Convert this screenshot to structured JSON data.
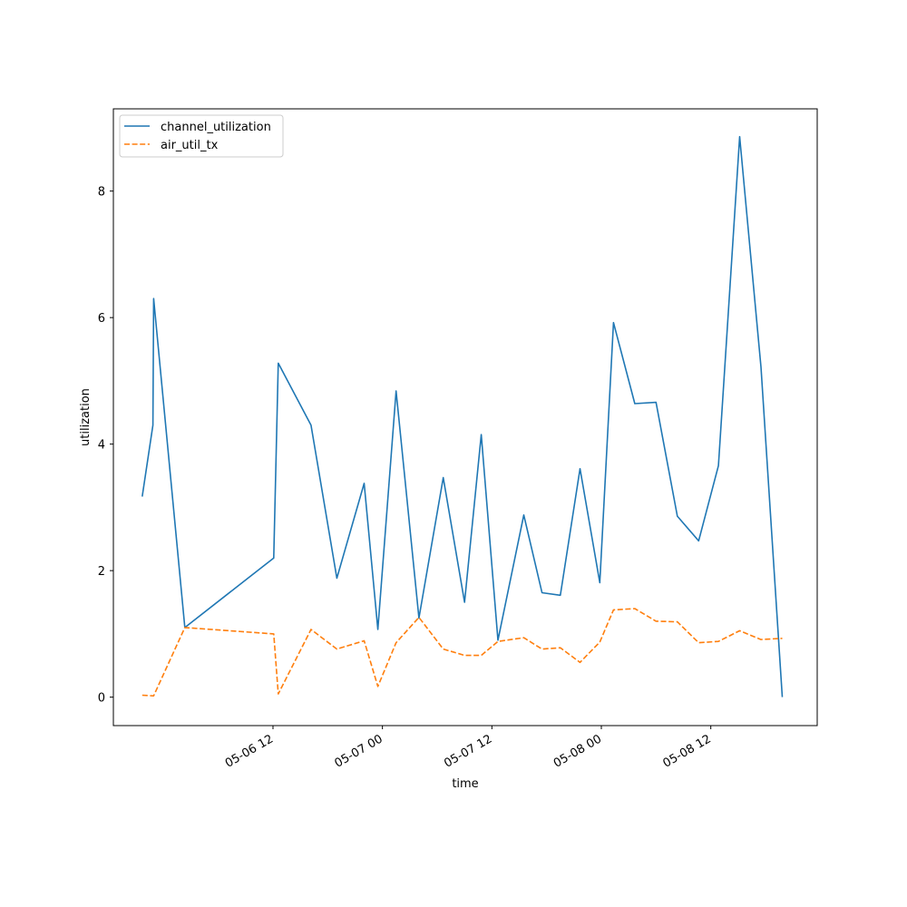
{
  "chart_data": {
    "type": "line",
    "title": "",
    "xlabel": "time",
    "ylabel": "utilization",
    "x_tick_labels": [
      "05-06 12",
      "05-07 00",
      "05-07 12",
      "05-08 00",
      "05-08 12"
    ],
    "x_tick_values": [
      "2024-05-06T12:00",
      "2024-05-07T00:00",
      "2024-05-07T12:00",
      "2024-05-08T00:00",
      "2024-05-08T12:00"
    ],
    "y_ticks": [
      0,
      2,
      4,
      6,
      8
    ],
    "xlim": [
      "2024-05-05T18:30",
      "2024-05-08T23:40"
    ],
    "ylim": [
      -0.45,
      9.3
    ],
    "grid": false,
    "legend_position": "upper-left",
    "x": [
      "2024-05-05T21:40",
      "2024-05-05T22:50",
      "2024-05-05T22:55",
      "2024-05-06T02:20",
      "2024-05-06T12:05",
      "2024-05-06T12:35",
      "2024-05-06T16:10",
      "2024-05-06T19:00",
      "2024-05-06T22:00",
      "2024-05-06T23:30",
      "2024-05-07T01:30",
      "2024-05-07T04:00",
      "2024-05-07T06:40",
      "2024-05-07T09:00",
      "2024-05-07T10:50",
      "2024-05-07T12:40",
      "2024-05-07T15:30",
      "2024-05-07T17:30",
      "2024-05-07T19:30",
      "2024-05-07T21:40",
      "2024-05-07T23:50",
      "2024-05-08T01:20",
      "2024-05-08T03:40",
      "2024-05-08T06:00",
      "2024-05-08T08:20",
      "2024-05-08T10:40",
      "2024-05-08T12:50",
      "2024-05-08T15:10",
      "2024-05-08T17:30",
      "2024-05-08T19:50"
    ],
    "series": [
      {
        "name": "channel_utilization",
        "color": "#1f77b4",
        "dash": "solid",
        "values": [
          3.17,
          4.3,
          6.3,
          1.1,
          2.2,
          5.28,
          4.3,
          1.88,
          3.38,
          1.07,
          4.84,
          1.25,
          3.47,
          1.5,
          4.15,
          0.9,
          2.88,
          1.65,
          1.61,
          3.61,
          1.81,
          5.92,
          4.64,
          4.66,
          2.86,
          2.47,
          3.66,
          8.86,
          5.22,
          0.0
        ]
      },
      {
        "name": "air_util_tx",
        "color": "#ff7f0e",
        "dash": "dashed",
        "values": [
          0.03,
          0.02,
          0.02,
          1.1,
          1.0,
          0.05,
          1.07,
          0.76,
          0.89,
          0.17,
          0.86,
          1.26,
          0.76,
          0.66,
          0.66,
          0.88,
          0.94,
          0.76,
          0.78,
          0.55,
          0.87,
          1.38,
          1.4,
          1.2,
          1.19,
          0.86,
          0.88,
          1.05,
          0.91,
          0.93
        ]
      }
    ]
  }
}
